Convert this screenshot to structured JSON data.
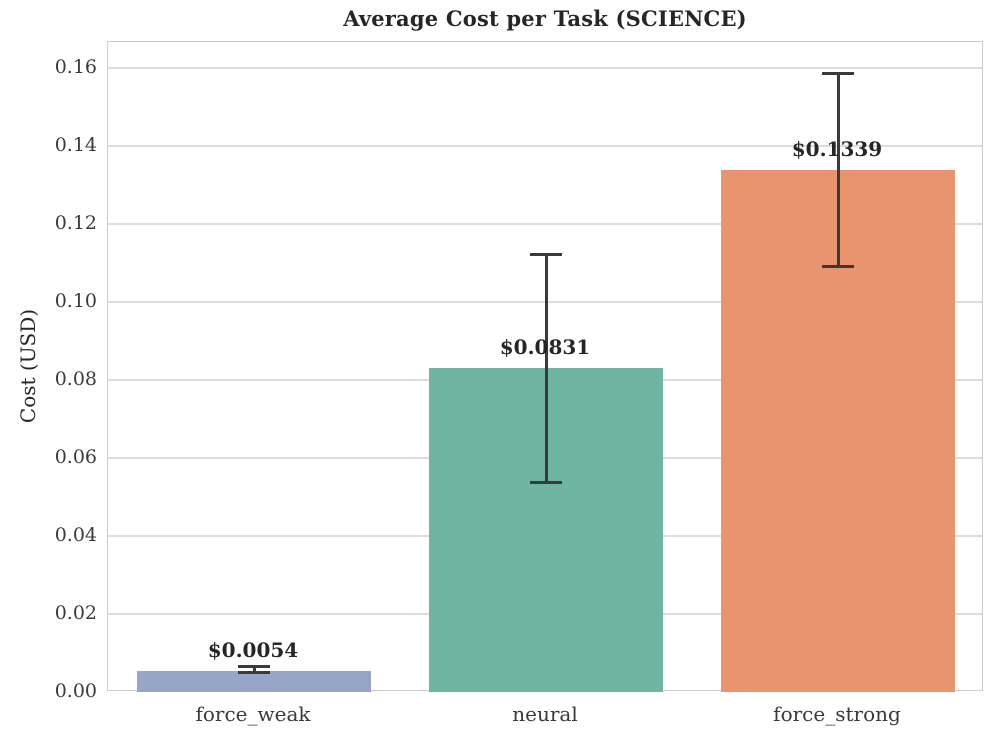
{
  "chart_data": {
    "type": "bar",
    "title": "Average Cost per Task (SCIENCE)",
    "xlabel": "",
    "ylabel": "Cost (USD)",
    "categories": [
      "force_weak",
      "neural",
      "force_strong"
    ],
    "values": [
      0.0054,
      0.0831,
      0.1339
    ],
    "value_labels": [
      "$0.0054",
      "$0.0831",
      "$0.1339"
    ],
    "error_low": [
      0.0049,
      0.0536,
      0.109
    ],
    "error_high": [
      0.0065,
      0.1123,
      0.1587
    ],
    "bar_colors": [
      "#97a6c6",
      "#6fb5a2",
      "#e8946f"
    ],
    "ytick_values": [
      0.0,
      0.02,
      0.04,
      0.06,
      0.08,
      0.1,
      0.12,
      0.14,
      0.16
    ],
    "ytick_labels": [
      "0.00",
      "0.02",
      "0.04",
      "0.06",
      "0.08",
      "0.10",
      "0.12",
      "0.14",
      "0.16"
    ],
    "ylim": [
      0,
      0.16667
    ],
    "grid": true,
    "legend_position": "none",
    "colors": {
      "grid": "#dddddd",
      "spine": "#cccccc",
      "errorbar": "#3a3a3a",
      "title_text": "#262626",
      "tick_text": "#3a3a3a",
      "background": "#ffffff"
    }
  }
}
